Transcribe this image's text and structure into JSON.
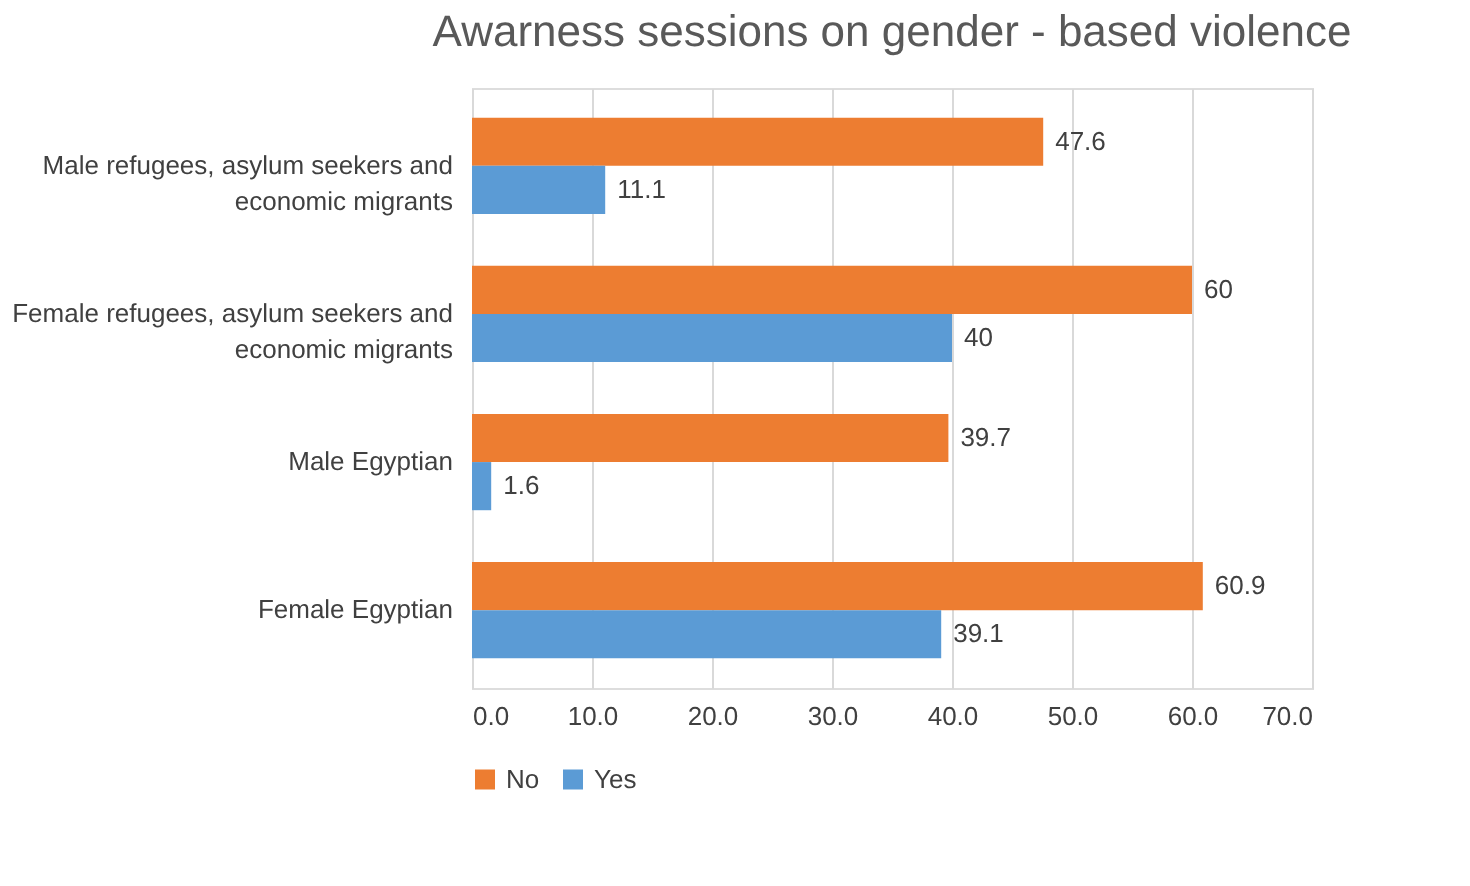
{
  "chart_data": {
    "type": "bar",
    "orientation": "horizontal",
    "title": "Awarness sessions on gender - based violence",
    "categories": [
      "Male refugees, asylum seekers and economic migrants",
      "Female refugees, asylum seekers and economic migrants",
      "Male Egyptian",
      "Female Egyptian"
    ],
    "series": [
      {
        "name": "No",
        "color": "#ed7d31",
        "values": [
          47.6,
          60,
          39.7,
          60.9
        ]
      },
      {
        "name": "Yes",
        "color": "#5b9bd5",
        "values": [
          11.1,
          40,
          1.6,
          39.1
        ]
      }
    ],
    "xlim": [
      0,
      70
    ],
    "xticks": [
      {
        "value": 0,
        "label": "0.0"
      },
      {
        "value": 10,
        "label": "10.0"
      },
      {
        "value": 20,
        "label": "20.0"
      },
      {
        "value": 30,
        "label": "30.0"
      },
      {
        "value": 40,
        "label": "40.0"
      },
      {
        "value": 50,
        "label": "50.0"
      },
      {
        "value": 60,
        "label": "60.0"
      },
      {
        "value": 70,
        "label": "70.0"
      }
    ],
    "grid": "x",
    "legend": "bottom",
    "data_labels": true
  }
}
